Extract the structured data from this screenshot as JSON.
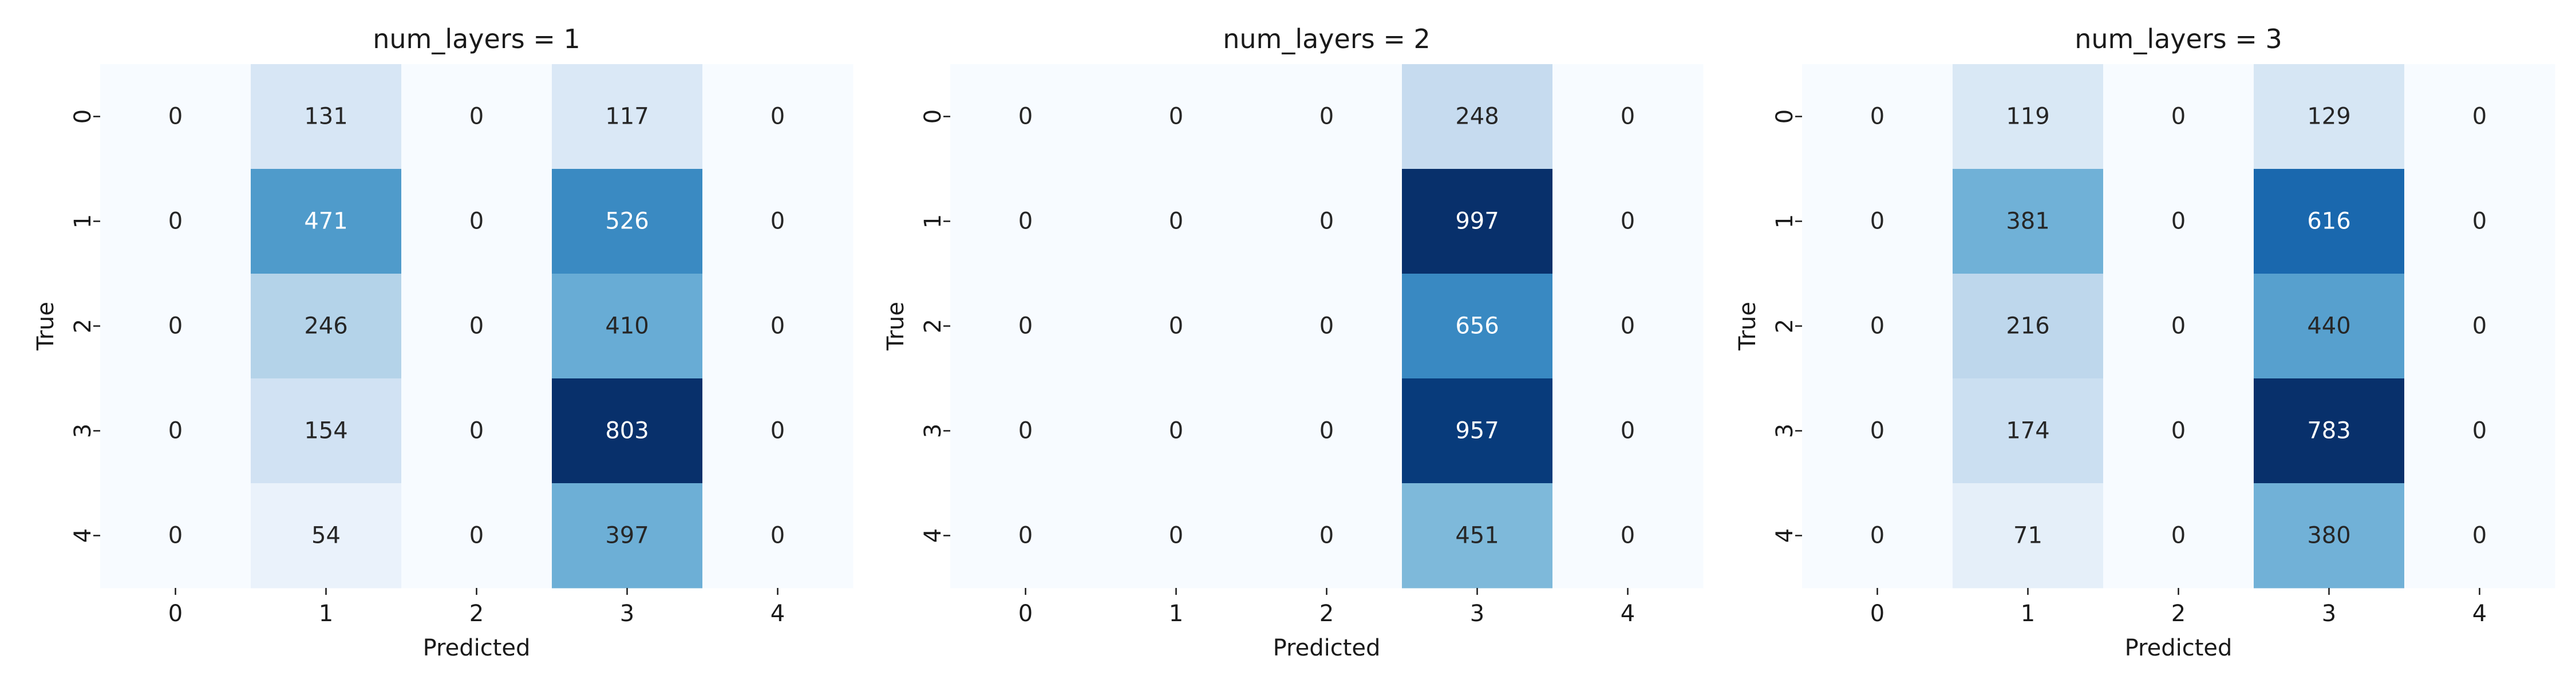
{
  "chart_data": [
    {
      "type": "heatmap",
      "title": "num_layers = 1",
      "xlabel": "Predicted",
      "ylabel": "True",
      "x_ticks": [
        "0",
        "1",
        "2",
        "3",
        "4"
      ],
      "y_ticks": [
        "0",
        "1",
        "2",
        "3",
        "4"
      ],
      "colormap": "Blues",
      "colorbar": false,
      "values": [
        [
          0,
          131,
          0,
          117,
          0
        ],
        [
          0,
          471,
          0,
          526,
          0
        ],
        [
          0,
          246,
          0,
          410,
          0
        ],
        [
          0,
          154,
          0,
          803,
          0
        ],
        [
          0,
          54,
          0,
          397,
          0
        ]
      ]
    },
    {
      "type": "heatmap",
      "title": "num_layers = 2",
      "xlabel": "Predicted",
      "ylabel": "True",
      "x_ticks": [
        "0",
        "1",
        "2",
        "3",
        "4"
      ],
      "y_ticks": [
        "0",
        "1",
        "2",
        "3",
        "4"
      ],
      "colormap": "Blues",
      "colorbar": false,
      "values": [
        [
          0,
          0,
          0,
          248,
          0
        ],
        [
          0,
          0,
          0,
          997,
          0
        ],
        [
          0,
          0,
          0,
          656,
          0
        ],
        [
          0,
          0,
          0,
          957,
          0
        ],
        [
          0,
          0,
          0,
          451,
          0
        ]
      ]
    },
    {
      "type": "heatmap",
      "title": "num_layers = 3",
      "xlabel": "Predicted",
      "ylabel": "True",
      "x_ticks": [
        "0",
        "1",
        "2",
        "3",
        "4"
      ],
      "y_ticks": [
        "0",
        "1",
        "2",
        "3",
        "4"
      ],
      "colormap": "Blues",
      "colorbar": false,
      "values": [
        [
          0,
          119,
          0,
          129,
          0
        ],
        [
          0,
          381,
          0,
          616,
          0
        ],
        [
          0,
          216,
          0,
          440,
          0
        ],
        [
          0,
          174,
          0,
          783,
          0
        ],
        [
          0,
          71,
          0,
          380,
          0
        ]
      ]
    }
  ]
}
